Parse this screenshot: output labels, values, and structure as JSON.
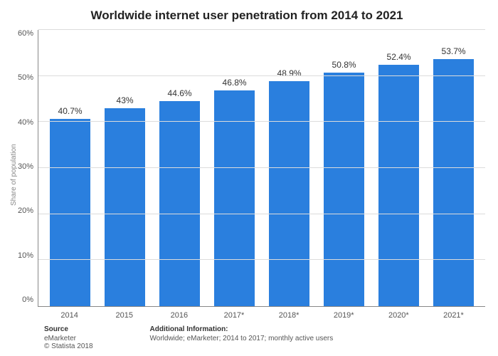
{
  "chart": {
    "type": "bar",
    "title": "Worldwide internet user penetration from 2014 to 2021",
    "title_fontsize": 17,
    "y_axis_label": "Share of population",
    "y_axis_label_fontsize": 10,
    "ylim": [
      0,
      60
    ],
    "yticks": [
      0,
      10,
      20,
      30,
      40,
      50,
      60
    ],
    "ytick_labels": [
      "0%",
      "10%",
      "20%",
      "30%",
      "40%",
      "50%",
      "60%"
    ],
    "ytick_fontsize": 11,
    "categories": [
      "2014",
      "2015",
      "2016",
      "2017*",
      "2018*",
      "2019*",
      "2020*",
      "2021*"
    ],
    "values": [
      40.7,
      43,
      44.6,
      46.8,
      48.9,
      50.8,
      52.4,
      53.7
    ],
    "value_labels": [
      "40.7%",
      "43%",
      "44.6%",
      "46.8%",
      "48.9%",
      "50.8%",
      "52.4%",
      "53.7%"
    ],
    "value_label_fontsize": 12,
    "xtick_fontsize": 11,
    "bar_color": "#2a7fde",
    "bar_width": 0.74,
    "grid_color": "#dcdcdc",
    "axis_color": "#888888",
    "background_color": "#ffffff",
    "text_color": "#333333"
  },
  "footer": {
    "fontsize": 10,
    "source_heading": "Source",
    "source_line1": "eMarketer",
    "source_line2": "© Statista 2018",
    "addl_heading": "Additional Information:",
    "addl_text": "Worldwide; eMarketer; 2014 to 2017; monthly active users"
  }
}
